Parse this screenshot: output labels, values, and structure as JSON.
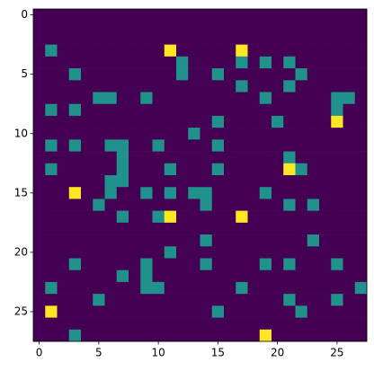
{
  "chart_data": {
    "type": "heatmap",
    "xlim": [
      -0.5,
      27.5
    ],
    "ylim": [
      27.5,
      -0.5
    ],
    "xticks": [
      0,
      5,
      10,
      15,
      20,
      25
    ],
    "yticks": [
      0,
      5,
      10,
      15,
      20,
      25
    ],
    "colors": [
      "#440154",
      "#21918c",
      "#fde725"
    ],
    "z": [
      [
        0,
        0,
        0,
        0,
        0,
        0,
        0,
        0,
        0,
        0,
        0,
        0,
        0,
        0,
        0,
        0,
        0,
        0,
        0,
        0,
        0,
        0,
        0,
        0,
        0,
        0,
        0,
        0
      ],
      [
        0,
        0,
        0,
        0,
        0,
        0,
        0,
        0,
        0,
        0,
        0,
        0,
        0,
        0,
        0,
        0,
        0,
        0,
        0,
        0,
        0,
        0,
        0,
        0,
        0,
        0,
        0,
        0
      ],
      [
        0,
        0,
        0,
        0,
        0,
        0,
        0,
        0,
        0,
        0,
        0,
        0,
        0,
        0,
        0,
        0,
        0,
        0,
        0,
        0,
        0,
        0,
        0,
        0,
        0,
        0,
        0,
        0
      ],
      [
        0,
        1,
        0,
        0,
        0,
        0,
        0,
        0,
        0,
        0,
        0,
        2,
        0,
        0,
        0,
        0,
        0,
        2,
        0,
        0,
        0,
        0,
        0,
        0,
        0,
        0,
        0,
        0
      ],
      [
        0,
        0,
        0,
        0,
        0,
        0,
        0,
        0,
        0,
        0,
        0,
        0,
        1,
        0,
        0,
        0,
        0,
        1,
        0,
        1,
        0,
        1,
        0,
        0,
        0,
        0,
        0,
        0
      ],
      [
        0,
        0,
        0,
        1,
        0,
        0,
        0,
        0,
        0,
        0,
        0,
        0,
        1,
        0,
        0,
        1,
        0,
        0,
        0,
        0,
        0,
        0,
        1,
        0,
        0,
        0,
        0,
        0
      ],
      [
        0,
        0,
        0,
        0,
        0,
        0,
        0,
        0,
        0,
        0,
        0,
        0,
        0,
        0,
        0,
        0,
        0,
        1,
        0,
        0,
        0,
        1,
        0,
        0,
        0,
        0,
        0,
        0
      ],
      [
        0,
        0,
        0,
        0,
        0,
        1,
        1,
        0,
        0,
        1,
        0,
        0,
        0,
        0,
        0,
        0,
        0,
        0,
        0,
        1,
        0,
        0,
        0,
        0,
        0,
        1,
        1,
        0
      ],
      [
        0,
        1,
        0,
        1,
        0,
        0,
        0,
        0,
        0,
        0,
        0,
        0,
        0,
        0,
        0,
        0,
        0,
        0,
        0,
        0,
        0,
        0,
        0,
        0,
        0,
        1,
        0,
        0
      ],
      [
        0,
        0,
        0,
        0,
        0,
        0,
        0,
        0,
        0,
        0,
        0,
        0,
        0,
        0,
        0,
        1,
        0,
        0,
        0,
        0,
        1,
        0,
        0,
        0,
        0,
        2,
        0,
        0
      ],
      [
        0,
        0,
        0,
        0,
        0,
        0,
        0,
        0,
        0,
        0,
        0,
        0,
        0,
        1,
        0,
        0,
        0,
        0,
        0,
        0,
        0,
        0,
        0,
        0,
        0,
        0,
        0,
        0
      ],
      [
        0,
        1,
        0,
        1,
        0,
        0,
        1,
        1,
        0,
        0,
        1,
        0,
        0,
        0,
        0,
        1,
        0,
        0,
        0,
        0,
        0,
        0,
        0,
        0,
        0,
        0,
        0,
        0
      ],
      [
        0,
        0,
        0,
        0,
        0,
        0,
        0,
        1,
        0,
        0,
        0,
        0,
        0,
        0,
        0,
        0,
        0,
        0,
        0,
        0,
        0,
        1,
        0,
        0,
        0,
        0,
        0,
        0
      ],
      [
        0,
        1,
        0,
        0,
        0,
        0,
        0,
        1,
        0,
        0,
        0,
        1,
        0,
        0,
        0,
        1,
        0,
        0,
        0,
        0,
        0,
        2,
        1,
        0,
        0,
        0,
        0,
        0
      ],
      [
        0,
        0,
        0,
        0,
        0,
        0,
        1,
        1,
        0,
        0,
        0,
        0,
        0,
        0,
        0,
        0,
        0,
        0,
        0,
        0,
        0,
        0,
        0,
        0,
        0,
        0,
        0,
        0
      ],
      [
        0,
        0,
        0,
        2,
        0,
        0,
        1,
        0,
        0,
        1,
        0,
        1,
        0,
        1,
        1,
        0,
        0,
        0,
        0,
        1,
        0,
        0,
        0,
        0,
        0,
        0,
        0,
        0
      ],
      [
        0,
        0,
        0,
        0,
        0,
        1,
        0,
        0,
        0,
        0,
        0,
        0,
        0,
        0,
        1,
        0,
        0,
        0,
        0,
        0,
        0,
        1,
        0,
        1,
        0,
        0,
        0,
        0
      ],
      [
        0,
        0,
        0,
        0,
        0,
        0,
        0,
        1,
        0,
        0,
        1,
        2,
        0,
        0,
        0,
        0,
        0,
        2,
        0,
        0,
        0,
        0,
        0,
        0,
        0,
        0,
        0,
        0
      ],
      [
        0,
        0,
        0,
        0,
        0,
        0,
        0,
        0,
        0,
        0,
        0,
        0,
        0,
        0,
        0,
        0,
        0,
        0,
        0,
        0,
        0,
        0,
        0,
        0,
        0,
        0,
        0,
        0
      ],
      [
        0,
        0,
        0,
        0,
        0,
        0,
        0,
        0,
        0,
        0,
        0,
        0,
        0,
        0,
        1,
        0,
        0,
        0,
        0,
        0,
        0,
        0,
        0,
        1,
        0,
        0,
        0,
        0
      ],
      [
        0,
        0,
        0,
        0,
        0,
        0,
        0,
        0,
        0,
        0,
        0,
        1,
        0,
        0,
        0,
        0,
        0,
        0,
        0,
        0,
        0,
        0,
        0,
        0,
        0,
        0,
        0,
        0
      ],
      [
        0,
        0,
        0,
        1,
        0,
        0,
        0,
        0,
        0,
        1,
        0,
        0,
        0,
        0,
        1,
        0,
        0,
        0,
        0,
        1,
        0,
        1,
        0,
        0,
        0,
        1,
        0,
        0
      ],
      [
        0,
        0,
        0,
        0,
        0,
        0,
        0,
        1,
        0,
        1,
        0,
        0,
        0,
        0,
        0,
        0,
        0,
        0,
        0,
        0,
        0,
        0,
        0,
        0,
        0,
        0,
        0,
        0
      ],
      [
        0,
        1,
        0,
        0,
        0,
        0,
        0,
        0,
        0,
        1,
        1,
        0,
        0,
        0,
        0,
        0,
        0,
        1,
        0,
        0,
        0,
        0,
        0,
        0,
        0,
        0,
        0,
        1
      ],
      [
        0,
        0,
        0,
        0,
        0,
        1,
        0,
        0,
        0,
        0,
        0,
        0,
        0,
        0,
        0,
        0,
        0,
        0,
        0,
        0,
        0,
        1,
        0,
        0,
        0,
        1,
        0,
        0
      ],
      [
        0,
        2,
        0,
        0,
        0,
        0,
        0,
        0,
        0,
        0,
        0,
        0,
        0,
        0,
        0,
        1,
        0,
        0,
        0,
        0,
        0,
        0,
        1,
        0,
        0,
        0,
        0,
        0
      ],
      [
        0,
        0,
        0,
        0,
        0,
        0,
        0,
        0,
        0,
        0,
        0,
        0,
        0,
        0,
        0,
        0,
        0,
        0,
        0,
        0,
        0,
        0,
        0,
        0,
        0,
        0,
        0,
        0
      ],
      [
        0,
        0,
        0,
        1,
        0,
        0,
        0,
        0,
        0,
        0,
        0,
        0,
        0,
        0,
        0,
        0,
        0,
        0,
        0,
        2,
        0,
        0,
        0,
        0,
        0,
        0,
        0,
        0
      ]
    ]
  }
}
